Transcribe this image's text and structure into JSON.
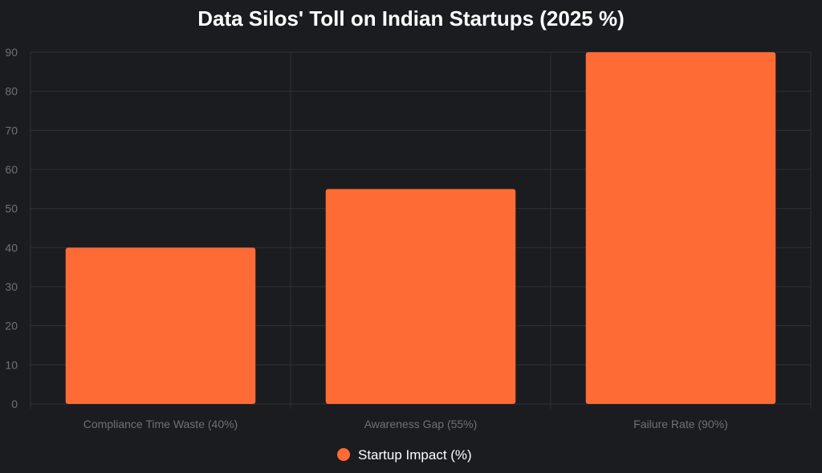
{
  "chart_data": {
    "type": "bar",
    "title": "Data Silos' Toll on Indian Startups (2025 %)",
    "categories": [
      "Compliance Time Waste (40%)",
      "Awareness Gap (55%)",
      "Failure Rate (90%)"
    ],
    "series": [
      {
        "name": "Startup Impact (%)",
        "values": [
          40,
          55,
          90
        ]
      }
    ],
    "ylim": [
      0,
      90
    ],
    "yticks": [
      0,
      10,
      20,
      30,
      40,
      50,
      60,
      70,
      80,
      90
    ],
    "xlabel": "",
    "ylabel": "",
    "grid": true,
    "legend_position": "bottom"
  },
  "colors": {
    "background": "#1b1c20",
    "bar": "#ff6b35",
    "grid": "#2e3036",
    "tick_text": "#6f7176",
    "title_text": "#ffffff",
    "legend_text": "#ffffff"
  }
}
